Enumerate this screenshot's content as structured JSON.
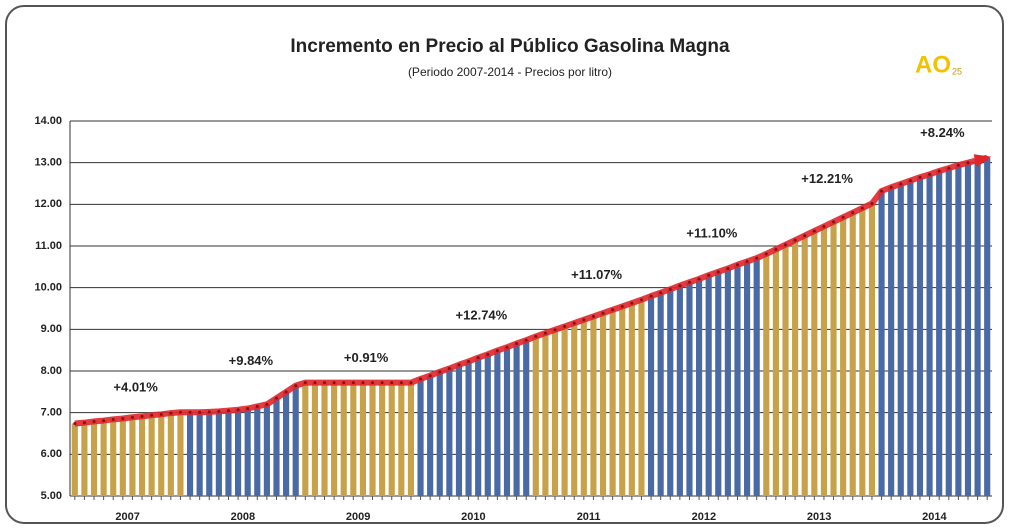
{
  "chart_data": {
    "type": "bar",
    "title": "Incremento en Precio al Público Gasolina Magna",
    "subtitle": "(Periodo 2007-2014 - Precios por litro)",
    "logo": {
      "main": "AO",
      "sub": "25"
    },
    "ylim": [
      5,
      14
    ],
    "yticks": [
      {
        "value": 5,
        "label": "5.00"
      },
      {
        "value": 6,
        "label": "6.00"
      },
      {
        "value": 7,
        "label": "7.00"
      },
      {
        "value": 8,
        "label": "8.00"
      },
      {
        "value": 9,
        "label": "9.00"
      },
      {
        "value": 10,
        "label": "10.00"
      },
      {
        "value": 11,
        "label": "11.00"
      },
      {
        "value": 12,
        "label": "12.00"
      },
      {
        "value": 13,
        "label": "13.00"
      },
      {
        "value": 14,
        "label": "14.00"
      }
    ],
    "grid": true,
    "line_color": "#e0262b",
    "groups": [
      {
        "label": "2007",
        "change": "+4.01%",
        "color": "#c8a24a",
        "values": [
          6.74,
          6.76,
          6.79,
          6.81,
          6.84,
          6.86,
          6.89,
          6.91,
          6.94,
          6.96,
          6.99,
          7.01
        ]
      },
      {
        "label": "2008",
        "change": "+9.84%",
        "color": "#4a6aa5",
        "values": [
          7.01,
          7.01,
          7.02,
          7.03,
          7.05,
          7.07,
          7.1,
          7.15,
          7.2,
          7.35,
          7.5,
          7.65
        ]
      },
      {
        "label": "2009",
        "change": "+0.91%",
        "color": "#c8a24a",
        "values": [
          7.72,
          7.72,
          7.72,
          7.72,
          7.72,
          7.72,
          7.72,
          7.72,
          7.72,
          7.72,
          7.72,
          7.72
        ]
      },
      {
        "label": "2010",
        "change": "+12.74%",
        "color": "#4a6aa5",
        "values": [
          7.81,
          7.89,
          7.98,
          8.06,
          8.15,
          8.23,
          8.32,
          8.4,
          8.49,
          8.57,
          8.66,
          8.74
        ]
      },
      {
        "label": "2011",
        "change": "+11.07%",
        "color": "#c8a24a",
        "values": [
          8.83,
          8.91,
          8.99,
          9.07,
          9.15,
          9.23,
          9.31,
          9.39,
          9.47,
          9.55,
          9.63,
          9.71
        ]
      },
      {
        "label": "2012",
        "change": "+11.10%",
        "color": "#4a6aa5",
        "values": [
          9.8,
          9.88,
          9.96,
          10.05,
          10.13,
          10.21,
          10.3,
          10.38,
          10.46,
          10.55,
          10.63,
          10.71
        ]
      },
      {
        "label": "2013",
        "change": "+12.21%",
        "color": "#c8a24a",
        "values": [
          10.81,
          10.92,
          11.03,
          11.14,
          11.25,
          11.36,
          11.47,
          11.58,
          11.69,
          11.8,
          11.91,
          12.02
        ]
      },
      {
        "label": "2014",
        "change": "+8.24%",
        "color": "#4a6aa5",
        "values": [
          12.32,
          12.41,
          12.49,
          12.57,
          12.65,
          12.72,
          12.8,
          12.87,
          12.94,
          13.0,
          13.06,
          13.12
        ]
      }
    ]
  }
}
